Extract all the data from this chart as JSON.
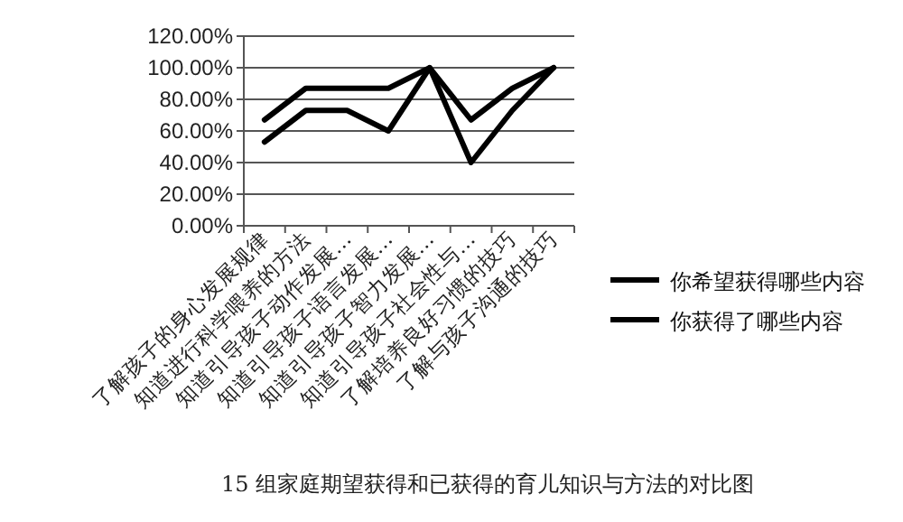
{
  "chart_data": {
    "type": "line",
    "title": "15 组家庭期望获得和已获得的育儿知识与方法的对比图",
    "categories": [
      "了解孩子的身心发展规律",
      "知道进行科学喂养的方法",
      "知道引导孩子动作发展…",
      "知道引导孩子语言发展…",
      "知道引导孩子智力发展…",
      "知道引导孩子社会性与…",
      "了解培养良好习惯的技巧",
      "了解与孩子沟通的技巧"
    ],
    "series": [
      {
        "name": "你希望获得哪些内容",
        "color": "#000000",
        "values": [
          67,
          87,
          87,
          87,
          100,
          67,
          87,
          100
        ]
      },
      {
        "name": "你获得了哪些内容",
        "color": "#000000",
        "values": [
          53,
          73,
          73,
          60,
          100,
          40,
          73,
          100
        ]
      }
    ],
    "ylim": [
      0,
      120
    ],
    "yticks": [
      {
        "value": 0,
        "label": "0.00%"
      },
      {
        "value": 20,
        "label": "20.00%"
      },
      {
        "value": 40,
        "label": "40.00%"
      },
      {
        "value": 60,
        "label": "60.00%"
      },
      {
        "value": 80,
        "label": "80.00%"
      },
      {
        "value": 100,
        "label": "100.00%"
      },
      {
        "value": 120,
        "label": "120.00%"
      }
    ],
    "grid": "y",
    "legend": "right",
    "marker": "none",
    "line_style": "solid"
  }
}
